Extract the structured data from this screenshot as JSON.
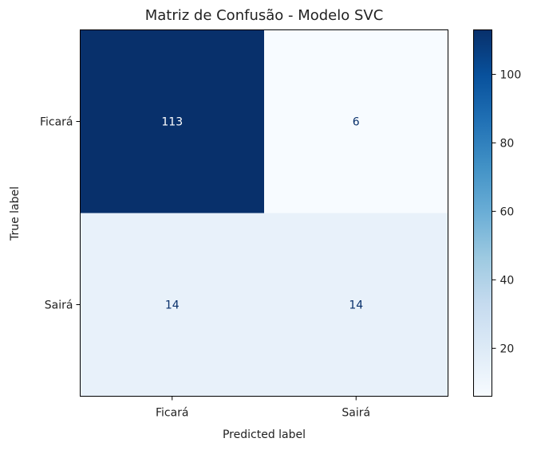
{
  "chart_data": {
    "type": "heatmap",
    "title": "Matriz de Confusão - Modelo SVC",
    "xlabel": "Predicted label",
    "ylabel": "True label",
    "x_categories": [
      "Ficará",
      "Sairá"
    ],
    "y_categories": [
      "Ficará",
      "Sairá"
    ],
    "values": [
      [
        113,
        6
      ],
      [
        14,
        14
      ]
    ],
    "colormap": "Blues",
    "colorbar": {
      "range": [
        6,
        113
      ],
      "ticks": [
        20,
        40,
        60,
        80,
        100
      ]
    },
    "colors": {
      "low": "#f7fbff",
      "high": "#08306b",
      "text_dark_cell": "#ffffff",
      "text_light_cell": "#08306b"
    }
  }
}
